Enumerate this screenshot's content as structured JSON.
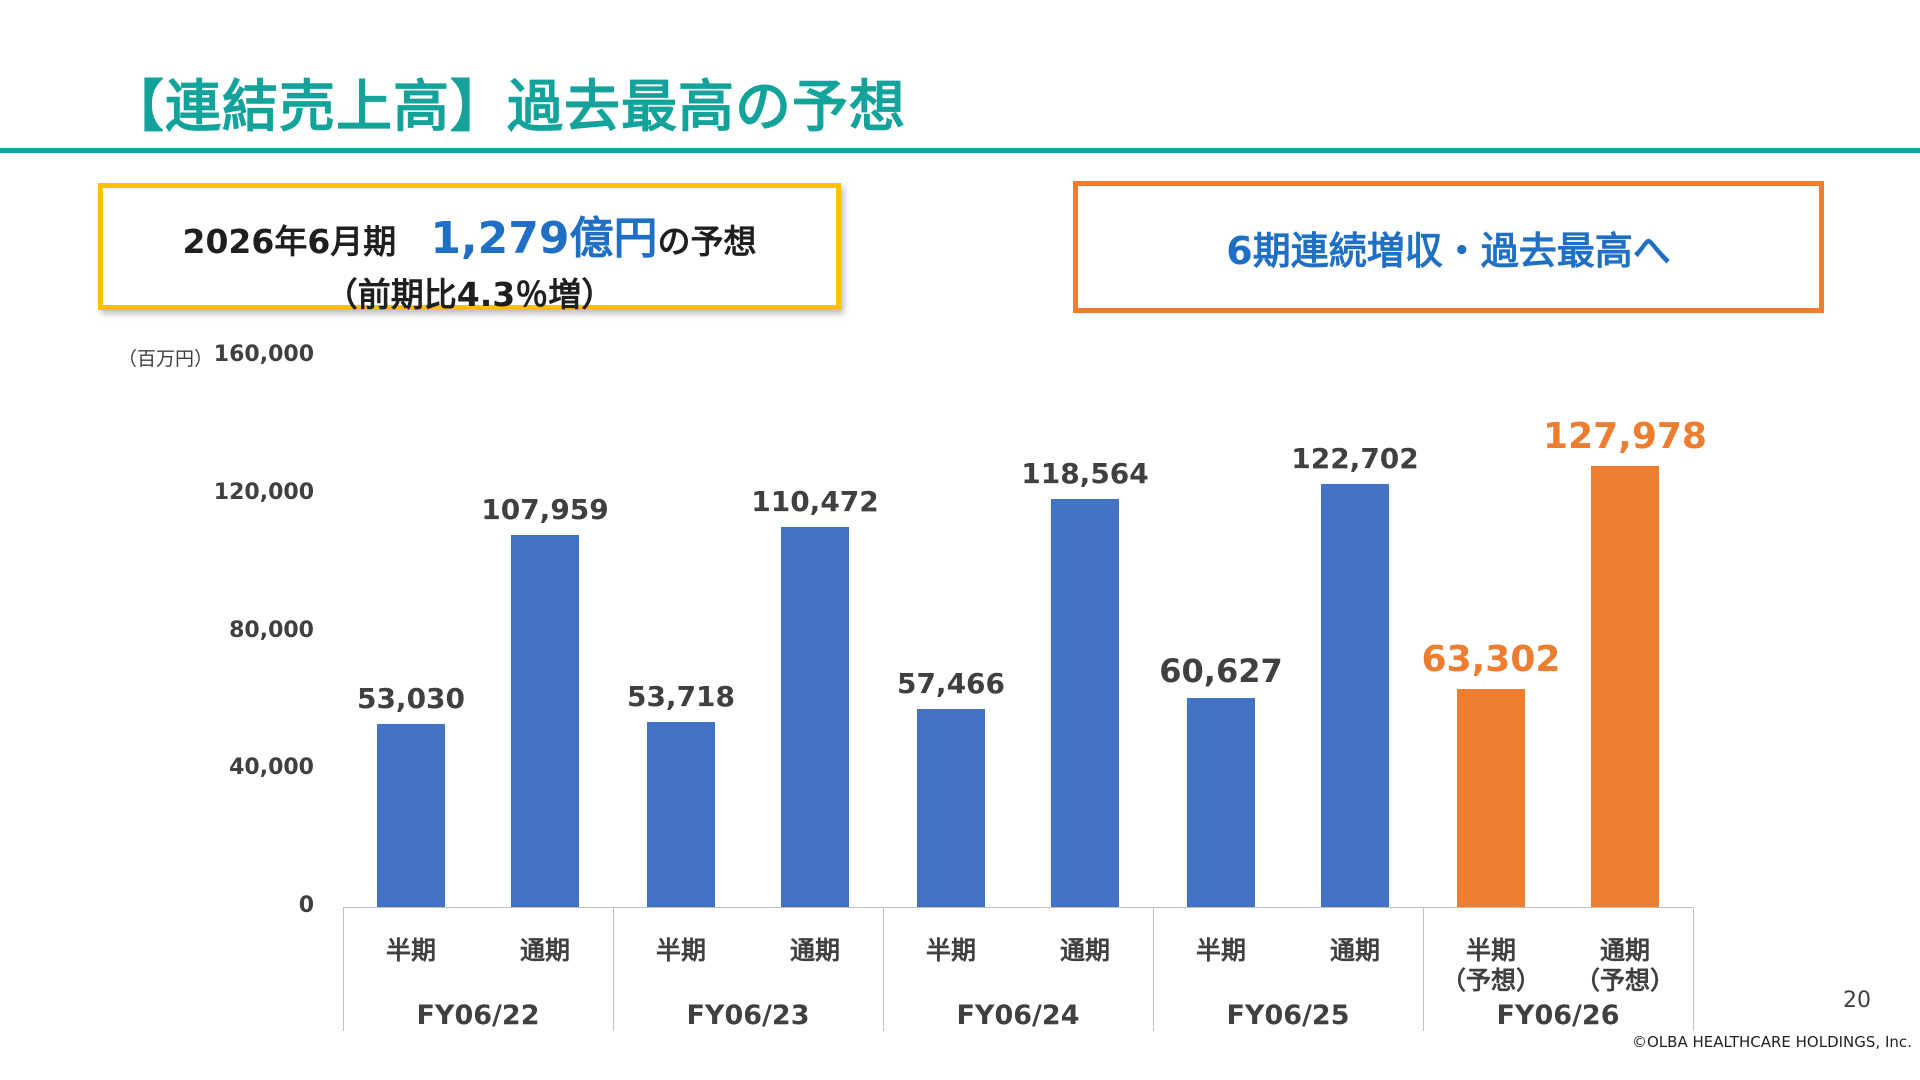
{
  "header": {
    "title": "【連結売上高】過去最高の予想"
  },
  "callout_left": {
    "prefix": "2026年6月期",
    "highlight": "1,279億円",
    "suffix": "の予想",
    "line2": "（前期比4.3％増）"
  },
  "callout_right": {
    "text": "6期連続増収・過去最高へ"
  },
  "footer": {
    "page_number": "20",
    "copyright": "©OLBA HEALTHCARE HOLDINGS, Inc."
  },
  "colors": {
    "accent": "#14a39a",
    "actual": "#4472c4",
    "forecast": "#ed7d31",
    "forecast_label": "#ed7d31",
    "label": "#404040"
  },
  "chart_data": {
    "type": "bar",
    "unit_label": "（百万円）",
    "ylim": [
      0,
      160000
    ],
    "yticks": [
      "0",
      "40,000",
      "80,000",
      "120,000",
      "160,000"
    ],
    "ytick_values": [
      0,
      40000,
      80000,
      120000,
      160000
    ],
    "grid": false,
    "groups": [
      "FY06/22",
      "FY06/23",
      "FY06/24",
      "FY06/25",
      "FY06/26"
    ],
    "bars": [
      {
        "group": 0,
        "category": "半期",
        "value": 53030,
        "label": "53,030",
        "forecast": false
      },
      {
        "group": 0,
        "category": "通期",
        "value": 107959,
        "label": "107,959",
        "forecast": false
      },
      {
        "group": 1,
        "category": "半期",
        "value": 53718,
        "label": "53,718",
        "forecast": false
      },
      {
        "group": 1,
        "category": "通期",
        "value": 110472,
        "label": "110,472",
        "forecast": false
      },
      {
        "group": 2,
        "category": "半期",
        "value": 57466,
        "label": "57,466",
        "forecast": false
      },
      {
        "group": 2,
        "category": "通期",
        "value": 118564,
        "label": "118,564",
        "forecast": false
      },
      {
        "group": 3,
        "category": "半期",
        "value": 60627,
        "label": "60,627",
        "forecast": false
      },
      {
        "group": 3,
        "category": "通期",
        "value": 122702,
        "label": "122,702",
        "forecast": false
      },
      {
        "group": 4,
        "category": "半期",
        "sub": "（予想）",
        "value": 63302,
        "label": "63,302",
        "forecast": true
      },
      {
        "group": 4,
        "category": "通期",
        "sub": "（予想）",
        "value": 127978,
        "label": "127,978",
        "forecast": true
      }
    ]
  }
}
